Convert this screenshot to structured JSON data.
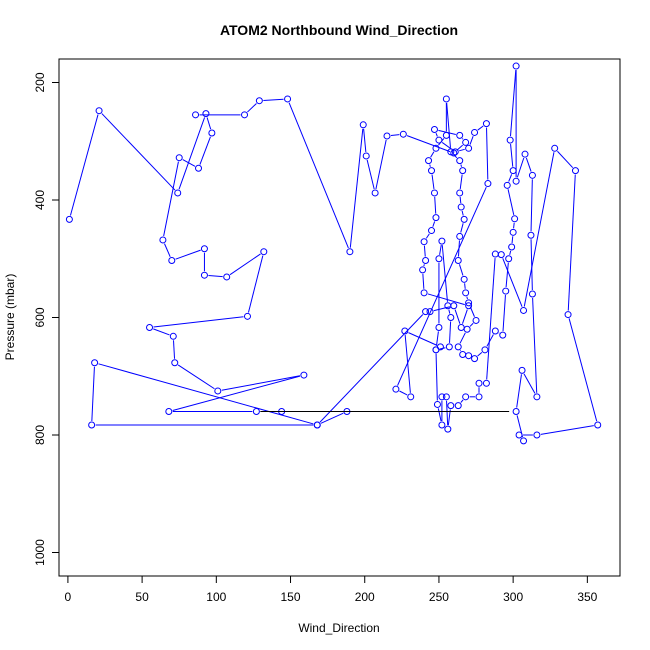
{
  "chart_data": {
    "type": "line",
    "title": "ATOM2 Northbound Wind_Direction",
    "xlabel": "Wind_Direction",
    "ylabel": "Pressure (mbar)",
    "xlim": [
      -6,
      372
    ],
    "ylim": [
      1040,
      160
    ],
    "y_reversed": true,
    "x_ticks": [
      0,
      50,
      100,
      150,
      200,
      250,
      300,
      350
    ],
    "y_ticks": [
      200,
      400,
      600,
      800,
      1000
    ],
    "grid": false,
    "legend": "none",
    "colors": {
      "series": "#0000ff",
      "segment": "#000000",
      "axis": "#000000"
    },
    "series": [
      {
        "values": [
          [
            1,
            433
          ],
          [
            21,
            248
          ],
          [
            74,
            388
          ],
          [
            93,
            253
          ],
          [
            97,
            286
          ],
          [
            88,
            346
          ],
          [
            75,
            328
          ],
          [
            64,
            468
          ],
          [
            70,
            503
          ],
          [
            92,
            483
          ],
          [
            92,
            528
          ],
          [
            107,
            531
          ],
          [
            132,
            488
          ],
          [
            121,
            598
          ],
          [
            55,
            617
          ],
          [
            71,
            632
          ],
          [
            72,
            677
          ],
          [
            101,
            725
          ],
          [
            159,
            698
          ],
          [
            68,
            760
          ],
          [
            127,
            760
          ],
          [
            144,
            760
          ],
          [
            188,
            760
          ],
          [
            168,
            783
          ],
          [
            16,
            783
          ],
          [
            18,
            677
          ],
          [
            168,
            783
          ],
          [
            241,
            590
          ],
          [
            244,
            590
          ],
          [
            260,
            580
          ],
          [
            265,
            617
          ],
          [
            270,
            580
          ],
          [
            240,
            558
          ],
          [
            239,
            519
          ],
          [
            241,
            503
          ],
          [
            240,
            471
          ],
          [
            245,
            452
          ],
          [
            248,
            430
          ],
          [
            247,
            388
          ],
          [
            245,
            350
          ],
          [
            243,
            333
          ],
          [
            248,
            312
          ],
          [
            255,
            290
          ],
          [
            255,
            228
          ],
          [
            258,
            318
          ],
          [
            264,
            333
          ],
          [
            266,
            350
          ],
          [
            264,
            388
          ],
          [
            265,
            412
          ],
          [
            267,
            433
          ],
          [
            264,
            462
          ],
          [
            263,
            503
          ],
          [
            267,
            535
          ],
          [
            268,
            558
          ],
          [
            270,
            575
          ],
          [
            275,
            605
          ],
          [
            269,
            620
          ],
          [
            263,
            650
          ],
          [
            266,
            663
          ],
          [
            270,
            665
          ],
          [
            274,
            670
          ],
          [
            281,
            655
          ],
          [
            288,
            623
          ],
          [
            293,
            630
          ],
          [
            295,
            555
          ],
          [
            297,
            500
          ],
          [
            299,
            480
          ],
          [
            300,
            455
          ],
          [
            301,
            432
          ],
          [
            296,
            375
          ],
          [
            300,
            350
          ],
          [
            298,
            298
          ],
          [
            302,
            172
          ],
          [
            302,
            368
          ],
          [
            308,
            322
          ],
          [
            313,
            358
          ],
          [
            312,
            460
          ],
          [
            313,
            560
          ],
          [
            316,
            735
          ],
          [
            306,
            690
          ],
          [
            302,
            760
          ],
          [
            307,
            810
          ],
          [
            304,
            800
          ],
          [
            316,
            800
          ],
          [
            357,
            783
          ],
          [
            337,
            595
          ],
          [
            342,
            350
          ],
          [
            328,
            312
          ],
          [
            307,
            588
          ],
          [
            292,
            493
          ],
          [
            288,
            492
          ],
          [
            282,
            712
          ],
          [
            277,
            712
          ],
          [
            277,
            735
          ],
          [
            268,
            735
          ],
          [
            263,
            750
          ],
          [
            258,
            750
          ],
          [
            256,
            790
          ],
          [
            255,
            735
          ],
          [
            252,
            735
          ],
          [
            252,
            783
          ],
          [
            249,
            748
          ],
          [
            248,
            655
          ],
          [
            250,
            617
          ],
          [
            250,
            500
          ],
          [
            252,
            470
          ],
          [
            256,
            580
          ],
          [
            258,
            600
          ],
          [
            257,
            650
          ],
          [
            248,
            655
          ],
          [
            251,
            650
          ],
          [
            227,
            623
          ],
          [
            231,
            735
          ],
          [
            221,
            722
          ],
          [
            283,
            372
          ],
          [
            282,
            270
          ],
          [
            274,
            285
          ],
          [
            270,
            312
          ],
          [
            261,
            318
          ],
          [
            250,
            298
          ],
          [
            247,
            280
          ],
          [
            264,
            290
          ],
          [
            268,
            302
          ],
          [
            260,
            320
          ],
          [
            226,
            288
          ],
          [
            215,
            291
          ],
          [
            207,
            388
          ],
          [
            201,
            325
          ],
          [
            199,
            272
          ],
          [
            190,
            488
          ],
          [
            148,
            228
          ],
          [
            129,
            231
          ],
          [
            119,
            255
          ],
          [
            86,
            255
          ]
        ]
      }
    ],
    "black_segment": [
      [
        127,
        760
      ],
      [
        300,
        760
      ]
    ]
  }
}
